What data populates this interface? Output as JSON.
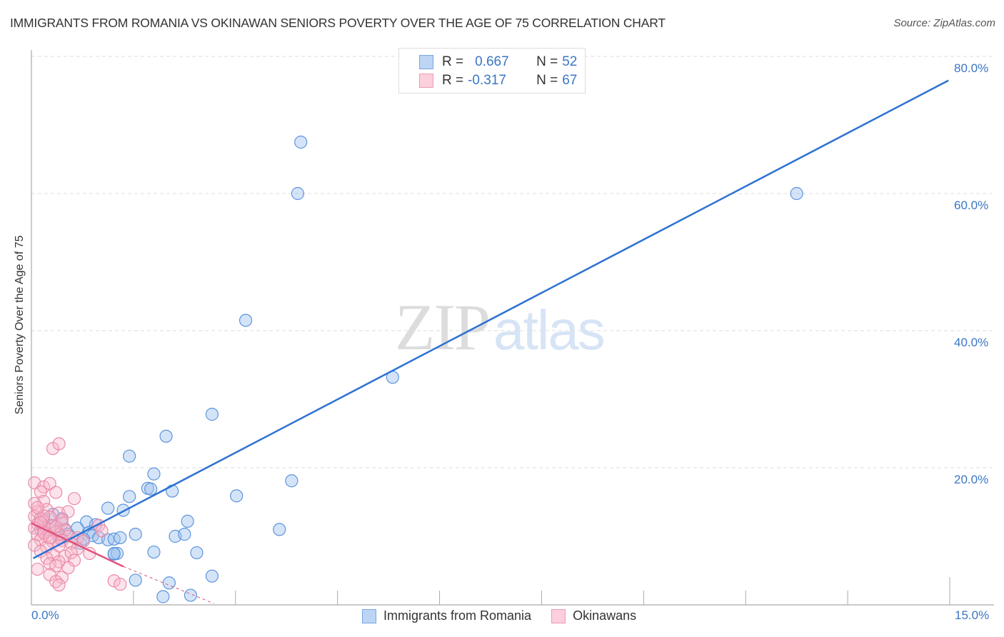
{
  "header": {
    "title": "IMMIGRANTS FROM ROMANIA VS OKINAWAN SENIORS POVERTY OVER THE AGE OF 75 CORRELATION CHART",
    "source": "Source: ZipAtlas.com"
  },
  "watermark": {
    "zip": "ZIP",
    "atlas": "atlas"
  },
  "stats_legend": {
    "rows": [
      {
        "r_label": "R =",
        "r_value": "0.667",
        "n_label": "N =",
        "n_value": "52",
        "color": "#a9c8f0",
        "border": "#7aa6e0"
      },
      {
        "r_label": "R =",
        "r_value": "-0.317",
        "n_label": "N =",
        "n_value": "67",
        "color": "#f9c5d5",
        "border": "#ee9ab4"
      }
    ]
  },
  "axes": {
    "y_label": "Seniors Poverty Over the Age of 75",
    "y_ticks": [
      "80.0%",
      "60.0%",
      "40.0%",
      "20.0%"
    ],
    "x_ticks": [
      "0.0%",
      "15.0%"
    ]
  },
  "bottom_legend": {
    "items": [
      {
        "label": "Immigrants from Romania",
        "color": "#bcd5f5",
        "border": "#7aa6e0"
      },
      {
        "label": "Okinawans",
        "color": "#fbcfdc",
        "border": "#ee9ab4"
      }
    ]
  },
  "colors": {
    "blue_line": "#2d72d2",
    "pink_line": "#e0517c",
    "blue_fill": "rgba(160,196,240,0.45)",
    "blue_stroke": "#5e94dc",
    "pink_fill": "rgba(248,182,202,0.40)",
    "pink_stroke": "#ea8aa8",
    "tick_text": "#3b76c4"
  },
  "chart_data": {
    "type": "scatter",
    "title": "IMMIGRANTS FROM ROMANIA VS OKINAWAN SENIORS POVERTY OVER THE AGE OF 75 CORRELATION CHART",
    "xlabel": "",
    "ylabel": "Seniors Poverty Over the Age of 75",
    "xlim": [
      0,
      15
    ],
    "ylim": [
      0,
      80
    ],
    "x_tick_labels": [
      "0.0%",
      "15.0%"
    ],
    "y_tick_labels": [
      "20.0%",
      "40.0%",
      "60.0%",
      "80.0%"
    ],
    "grid": "horizontal dashed",
    "legend_position": "bottom",
    "series": [
      {
        "name": "Immigrants from Romania",
        "r": 0.667,
        "n": 52,
        "trend": {
          "x": [
            0.03,
            14.98
          ],
          "y": [
            6.8,
            76.5
          ]
        },
        "points": [
          [
            4.4,
            67.5
          ],
          [
            4.35,
            60.0
          ],
          [
            12.5,
            60.0
          ],
          [
            3.5,
            41.5
          ],
          [
            5.9,
            33.2
          ],
          [
            2.95,
            27.8
          ],
          [
            2.2,
            24.6
          ],
          [
            1.6,
            21.7
          ],
          [
            2.0,
            19.1
          ],
          [
            4.25,
            18.1
          ],
          [
            1.9,
            17.0
          ],
          [
            1.95,
            16.9
          ],
          [
            2.3,
            16.6
          ],
          [
            1.6,
            15.8
          ],
          [
            3.35,
            15.9
          ],
          [
            1.25,
            14.1
          ],
          [
            1.5,
            13.8
          ],
          [
            0.5,
            12.6
          ],
          [
            0.9,
            12.1
          ],
          [
            1.05,
            11.7
          ],
          [
            2.55,
            12.2
          ],
          [
            0.3,
            11.5
          ],
          [
            0.55,
            11.0
          ],
          [
            0.75,
            11.2
          ],
          [
            0.95,
            10.6
          ],
          [
            4.05,
            11.0
          ],
          [
            0.6,
            10.3
          ],
          [
            1.0,
            10.1
          ],
          [
            1.1,
            9.8
          ],
          [
            1.25,
            9.5
          ],
          [
            1.35,
            9.6
          ],
          [
            1.45,
            9.8
          ],
          [
            1.7,
            10.3
          ],
          [
            2.35,
            10.0
          ],
          [
            2.5,
            10.3
          ],
          [
            0.8,
            9.0
          ],
          [
            0.4,
            10.7
          ],
          [
            0.2,
            12.5
          ],
          [
            0.35,
            13.2
          ],
          [
            1.35,
            7.4
          ],
          [
            1.4,
            7.5
          ],
          [
            1.35,
            7.5
          ],
          [
            2.0,
            7.7
          ],
          [
            2.7,
            7.6
          ],
          [
            0.85,
            9.6
          ],
          [
            0.45,
            9.8
          ],
          [
            1.7,
            3.6
          ],
          [
            2.25,
            3.2
          ],
          [
            2.95,
            4.2
          ],
          [
            2.15,
            1.2
          ],
          [
            2.6,
            1.4
          ],
          [
            0.15,
            11.0
          ]
        ]
      },
      {
        "name": "Okinawans",
        "r": -0.317,
        "n": 67,
        "trend": {
          "x": [
            0.0,
            1.5
          ],
          "y": [
            11.9,
            5.6
          ],
          "dashed_extension": {
            "x": [
              1.5,
              2.98
            ],
            "y": [
              5.6,
              0.2
            ]
          }
        },
        "points": [
          [
            0.35,
            22.8
          ],
          [
            0.45,
            23.5
          ],
          [
            0.05,
            17.8
          ],
          [
            0.2,
            17.2
          ],
          [
            0.3,
            17.7
          ],
          [
            0.15,
            16.5
          ],
          [
            0.4,
            16.4
          ],
          [
            0.7,
            15.5
          ],
          [
            0.2,
            15.1
          ],
          [
            0.05,
            14.8
          ],
          [
            0.1,
            13.6
          ],
          [
            0.25,
            13.9
          ],
          [
            0.45,
            13.4
          ],
          [
            0.6,
            13.6
          ],
          [
            0.05,
            12.9
          ],
          [
            0.15,
            12.6
          ],
          [
            0.3,
            12.8
          ],
          [
            0.2,
            12.2
          ],
          [
            0.1,
            11.8
          ],
          [
            0.35,
            11.6
          ],
          [
            0.5,
            11.9
          ],
          [
            0.05,
            11.2
          ],
          [
            0.2,
            10.8
          ],
          [
            0.4,
            10.6
          ],
          [
            0.55,
            10.9
          ],
          [
            0.1,
            10.2
          ],
          [
            0.25,
            10.0
          ],
          [
            0.45,
            10.3
          ],
          [
            0.6,
            10.0
          ],
          [
            0.75,
            9.8
          ],
          [
            1.1,
            11.6
          ],
          [
            1.15,
            10.8
          ],
          [
            0.15,
            9.5
          ],
          [
            0.35,
            9.2
          ],
          [
            0.5,
            9.4
          ],
          [
            0.65,
            9.0
          ],
          [
            0.85,
            9.3
          ],
          [
            0.05,
            8.7
          ],
          [
            0.25,
            8.4
          ],
          [
            0.45,
            8.6
          ],
          [
            0.75,
            8.2
          ],
          [
            0.95,
            7.5
          ],
          [
            0.15,
            7.8
          ],
          [
            0.35,
            7.3
          ],
          [
            0.55,
            7.1
          ],
          [
            0.65,
            7.6
          ],
          [
            0.25,
            6.8
          ],
          [
            0.45,
            6.3
          ],
          [
            0.7,
            6.5
          ],
          [
            0.3,
            6.0
          ],
          [
            0.4,
            5.7
          ],
          [
            0.1,
            5.2
          ],
          [
            0.6,
            5.4
          ],
          [
            0.3,
            4.4
          ],
          [
            0.5,
            4.0
          ],
          [
            0.4,
            3.4
          ],
          [
            0.45,
            2.9
          ],
          [
            1.35,
            3.5
          ],
          [
            1.45,
            3.0
          ],
          [
            0.2,
            13.0
          ],
          [
            0.1,
            14.2
          ],
          [
            0.3,
            11.0
          ],
          [
            0.15,
            12.0
          ],
          [
            0.5,
            12.4
          ],
          [
            0.2,
            10.5
          ],
          [
            0.3,
            9.8
          ],
          [
            0.4,
            11.4
          ]
        ]
      }
    ]
  }
}
